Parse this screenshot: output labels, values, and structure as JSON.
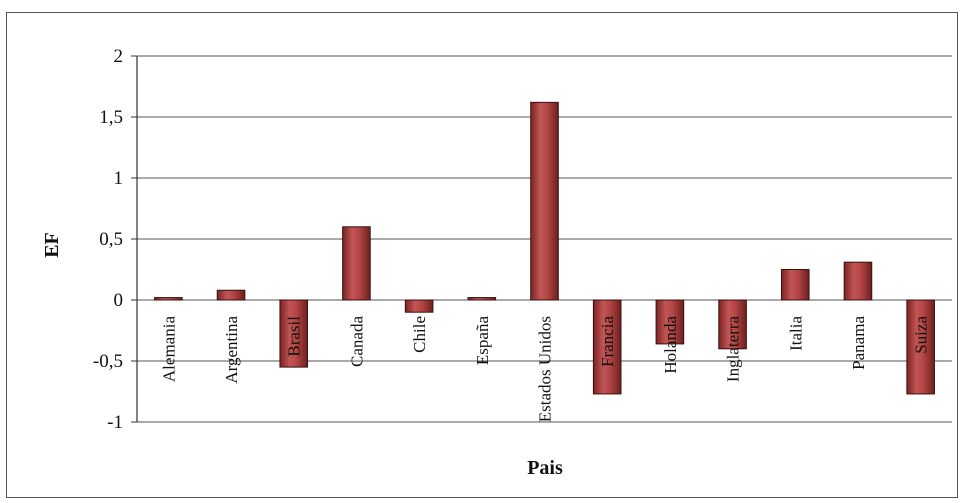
{
  "chart_data": {
    "type": "bar",
    "xlabel": "Pais",
    "ylabel": "EF",
    "ylim": [
      -1,
      2
    ],
    "yticks": [
      "-1",
      "-0,5",
      "0",
      "0,5",
      "1",
      "1,5",
      "2"
    ],
    "ytick_values": [
      -1,
      -0.5,
      0,
      0.5,
      1,
      1.5,
      2
    ],
    "grid": true,
    "categories": [
      "Alemania",
      "Argentina",
      "Brasil",
      "Canada",
      "Chile",
      "España",
      "Estados Unidos",
      "Francia",
      "Holanda",
      "Inglaterra",
      "Italia",
      "Panama",
      "Suiza"
    ],
    "values": [
      0.02,
      0.08,
      -0.55,
      0.6,
      -0.1,
      0.02,
      1.62,
      -0.77,
      -0.36,
      -0.4,
      0.25,
      0.31,
      -0.77
    ],
    "bar_color": "#a83a3a",
    "bar_highlight": "#d98080"
  }
}
